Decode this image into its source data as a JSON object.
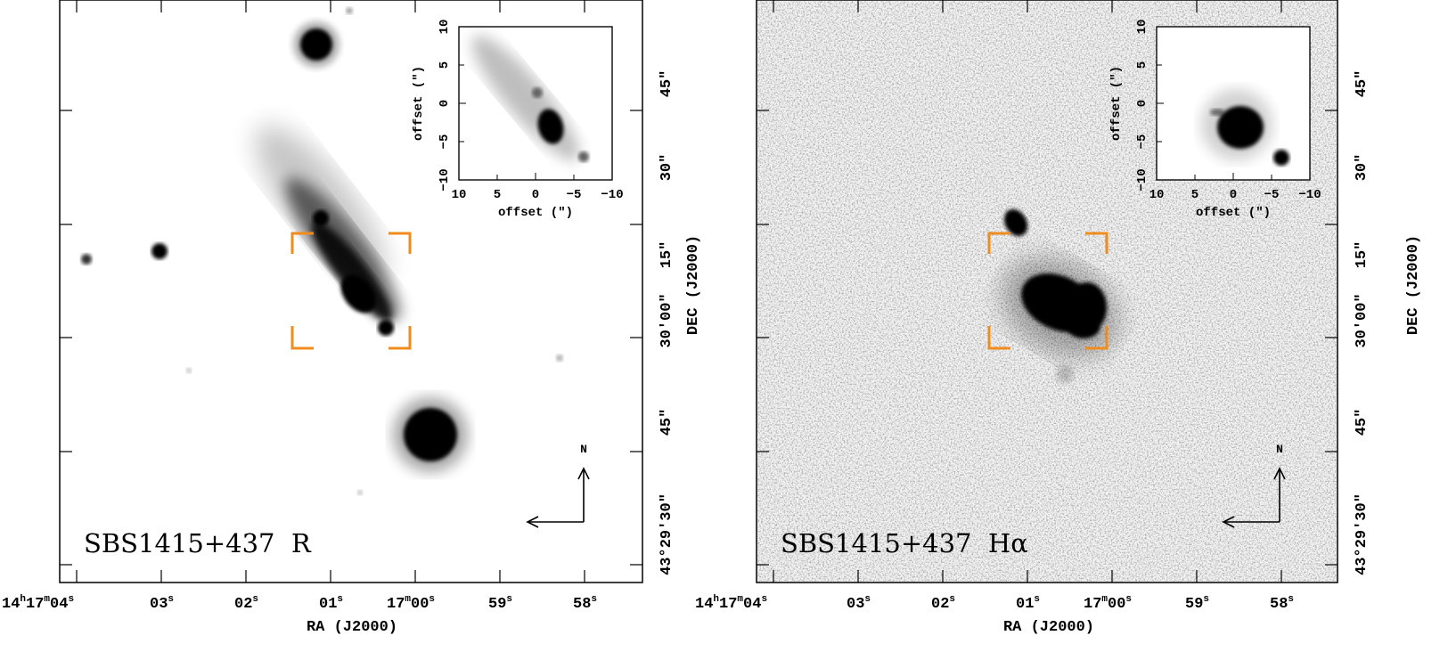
{
  "panels": [
    {
      "id": "r-band",
      "label": "SBS1415+437  R",
      "ra_axis_label": "RA (J2000)",
      "dec_axis_label": "DEC (J2000)",
      "ra_ticks": [
        {
          "major": "14",
          "u1": "h",
          "mid": "17",
          "u2": "m",
          "minor": "04",
          "u3": "s"
        },
        {
          "minor": "03",
          "u3": "s"
        },
        {
          "minor": "02",
          "u3": "s"
        },
        {
          "minor": "01",
          "u3": "s"
        },
        {
          "mid": "17",
          "u2": "m",
          "minor": "00",
          "u3": "s"
        },
        {
          "minor": "59",
          "u3": "s"
        },
        {
          "minor": "58",
          "u3": "s"
        }
      ],
      "dec_ticks": [
        "45\"",
        "30\"",
        "15\"",
        "30'00\"",
        "45\"",
        "43°29'30\""
      ],
      "compass": {
        "north": "N"
      },
      "inset": {
        "x_label": "offset (\")",
        "y_label": "offset (\")",
        "x_ticks": [
          "10",
          "5",
          "0",
          "−5",
          "−10"
        ],
        "y_ticks": [
          "10",
          "5",
          "0",
          "−5",
          "−10"
        ]
      }
    },
    {
      "id": "h-alpha",
      "label": "SBS1415+437  Hα",
      "ra_axis_label": "RA (J2000)",
      "dec_axis_label": "DEC (J2000)",
      "ra_ticks": [
        {
          "major": "14",
          "u1": "h",
          "mid": "17",
          "u2": "m",
          "minor": "04",
          "u3": "s"
        },
        {
          "minor": "03",
          "u3": "s"
        },
        {
          "minor": "02",
          "u3": "s"
        },
        {
          "minor": "01",
          "u3": "s"
        },
        {
          "mid": "17",
          "u2": "m",
          "minor": "00",
          "u3": "s"
        },
        {
          "minor": "59",
          "u3": "s"
        },
        {
          "minor": "58",
          "u3": "s"
        }
      ],
      "dec_ticks": [
        "45\"",
        "30\"",
        "15\"",
        "30'00\"",
        "45\"",
        "43°29'30\""
      ],
      "compass": {
        "north": "N"
      },
      "inset": {
        "x_label": "offset (\")",
        "y_label": "offset (\")",
        "x_ticks": [
          "10",
          "5",
          "0",
          "−5",
          "−10"
        ],
        "y_ticks": [
          "10",
          "5",
          "0",
          "−5",
          "−10"
        ]
      }
    }
  ],
  "colors": {
    "box_marker": "#f08c1e",
    "ink": "#000000",
    "sky_noise": "#e6e6e6"
  }
}
